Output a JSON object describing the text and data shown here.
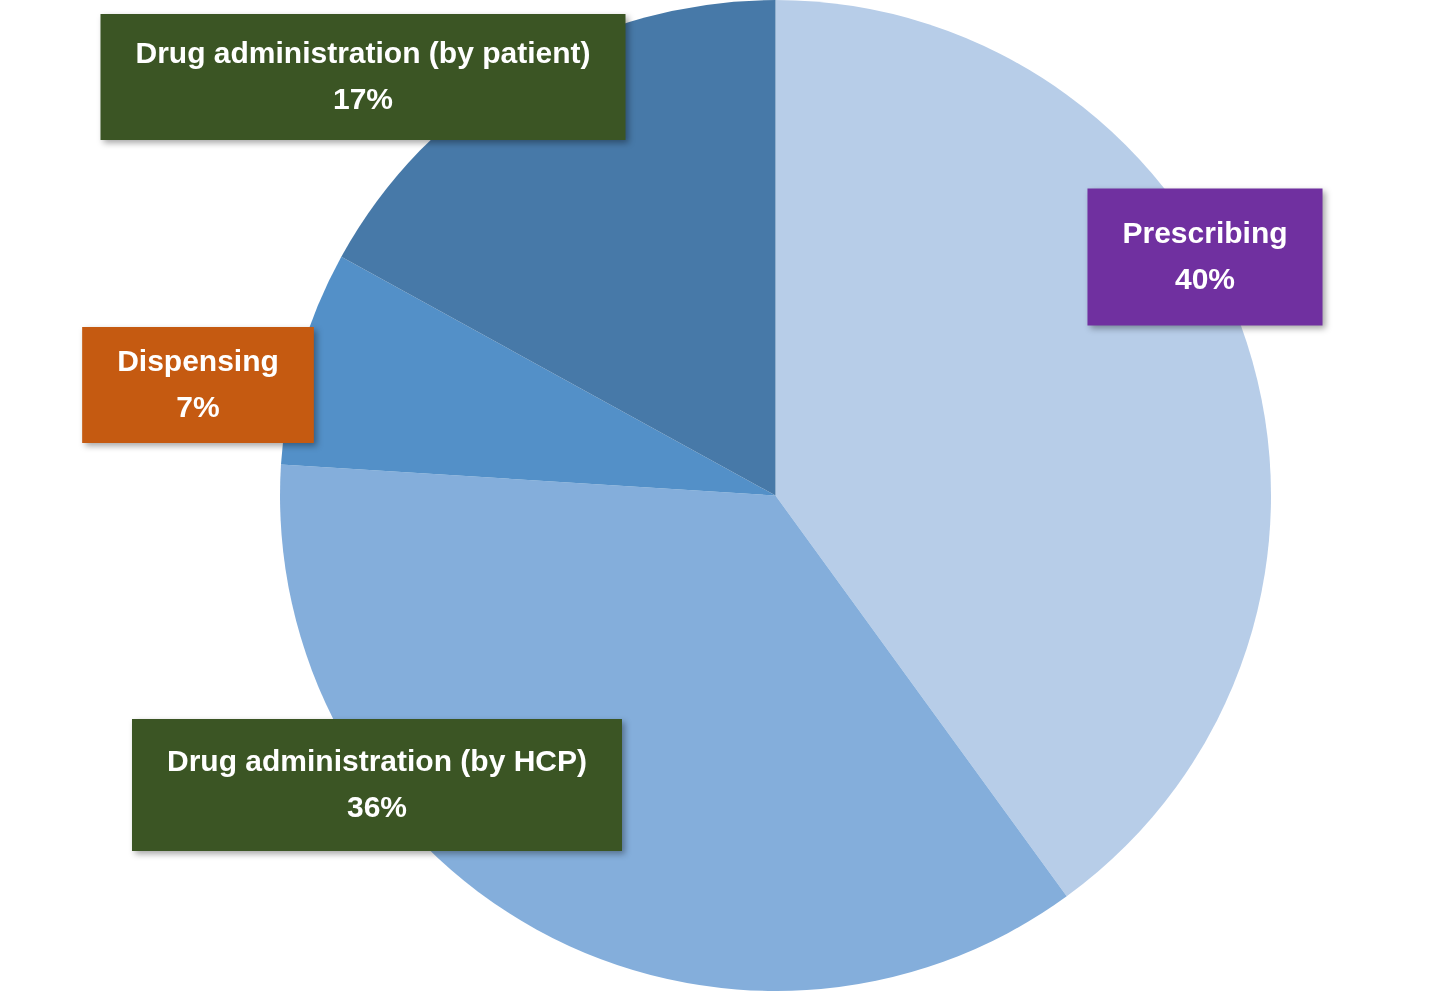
{
  "chart_data": {
    "type": "pie",
    "categories": [
      "Prescribing",
      "Drug administration (by HCP)",
      "Dispensing",
      "Drug administration (by patient)"
    ],
    "values": [
      40,
      36,
      7,
      17
    ],
    "value_labels": [
      "40%",
      "36%",
      "7%",
      "17%"
    ],
    "colors": [
      "#b7cde8",
      "#84aedb",
      "#5390c8",
      "#4779a8"
    ],
    "legend": false
  }
}
